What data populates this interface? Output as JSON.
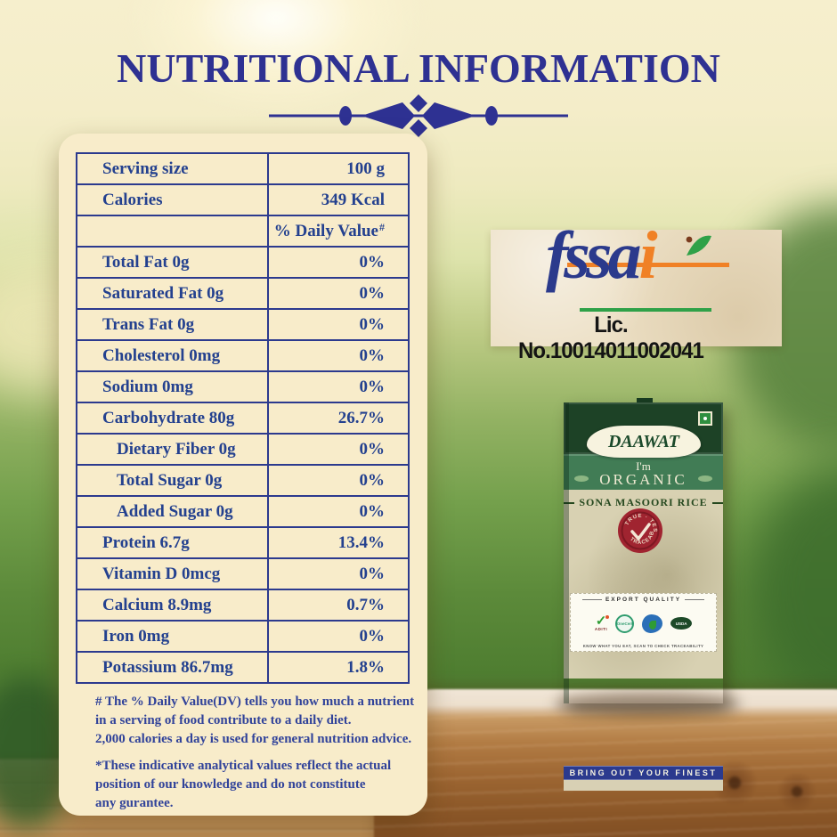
{
  "title": "NUTRITIONAL INFORMATION",
  "table": {
    "rows": [
      {
        "label": "Serving size",
        "value": "100 g"
      },
      {
        "label": "Calories",
        "value": "349 Kcal"
      },
      {
        "label": "",
        "value": "% Daily Value",
        "sup": "#"
      },
      {
        "label": "Total Fat 0g",
        "value": "0%"
      },
      {
        "label": "Saturated Fat 0g",
        "value": "0%"
      },
      {
        "label": "Trans Fat 0g",
        "value": "0%"
      },
      {
        "label": "Cholesterol 0mg",
        "value": "0%"
      },
      {
        "label": "Sodium 0mg",
        "value": "0%"
      },
      {
        "label": "Carbohydrate 80g",
        "value": "26.7%"
      },
      {
        "label": "Dietary Fiber 0g",
        "value": "0%",
        "indent": true
      },
      {
        "label": "Total Sugar 0g",
        "value": "0%",
        "indent": true
      },
      {
        "label": "Added Sugar 0g",
        "value": "0%",
        "indent": true
      },
      {
        "label": "Protein 6.7g",
        "value": "13.4%"
      },
      {
        "label": "Vitamin D 0mcg",
        "value": "0%"
      },
      {
        "label": "Calcium 8.9mg",
        "value": "0.7%"
      },
      {
        "label": "Iron 0mg",
        "value": "0%"
      },
      {
        "label": "Potassium 86.7mg",
        "value": "1.8%"
      }
    ]
  },
  "footnotes": {
    "note1": [
      "# The % Daily Value(DV) tells you how much a nutrient",
      "in a serving of food contribute to a daily diet.",
      "2,000 calories a day is used for general nutrition advice."
    ],
    "note2": [
      "*These indicative analytical values reflect the actual",
      "position of our knowledge and do not constitute",
      "any gurantee."
    ]
  },
  "fssai": {
    "word_main": "fssa",
    "word_i": "i",
    "license": "Lic. No.10014011002041"
  },
  "package": {
    "brand": "DAAWAT",
    "tagline_small": "I'm",
    "tagline_big": "ORGANIC",
    "product": "SONA MASOORI RICE",
    "seal_arc_top": "TRUE · TESTED",
    "seal_arc_bottom": "TRACEABLE",
    "export_quality": "EXPORT QUALITY",
    "cert_aditi": "ADITI",
    "cert_onecert": "OneCert",
    "cert_usda": "USDA",
    "trace_note": "KNOW WHAT YOU EAT, SCAN TO CHECK TRACEABILITY",
    "bottom_band": "BRING OUT YOUR FINEST"
  },
  "colors": {
    "navy": "#2e3192",
    "table_text": "#24418f",
    "table_border": "#2c3a8e",
    "panel_cream": "#f8ecca",
    "fssai_orange": "#f08126",
    "fssai_green": "#2fa148",
    "fssai_navy": "#2b3a8c",
    "package_dark_green": "#1d4226",
    "package_mid_green": "#417c55",
    "package_beige": "#d8d1b2",
    "seal_red": "#a02430",
    "band_blue": "#2b3a8e"
  }
}
